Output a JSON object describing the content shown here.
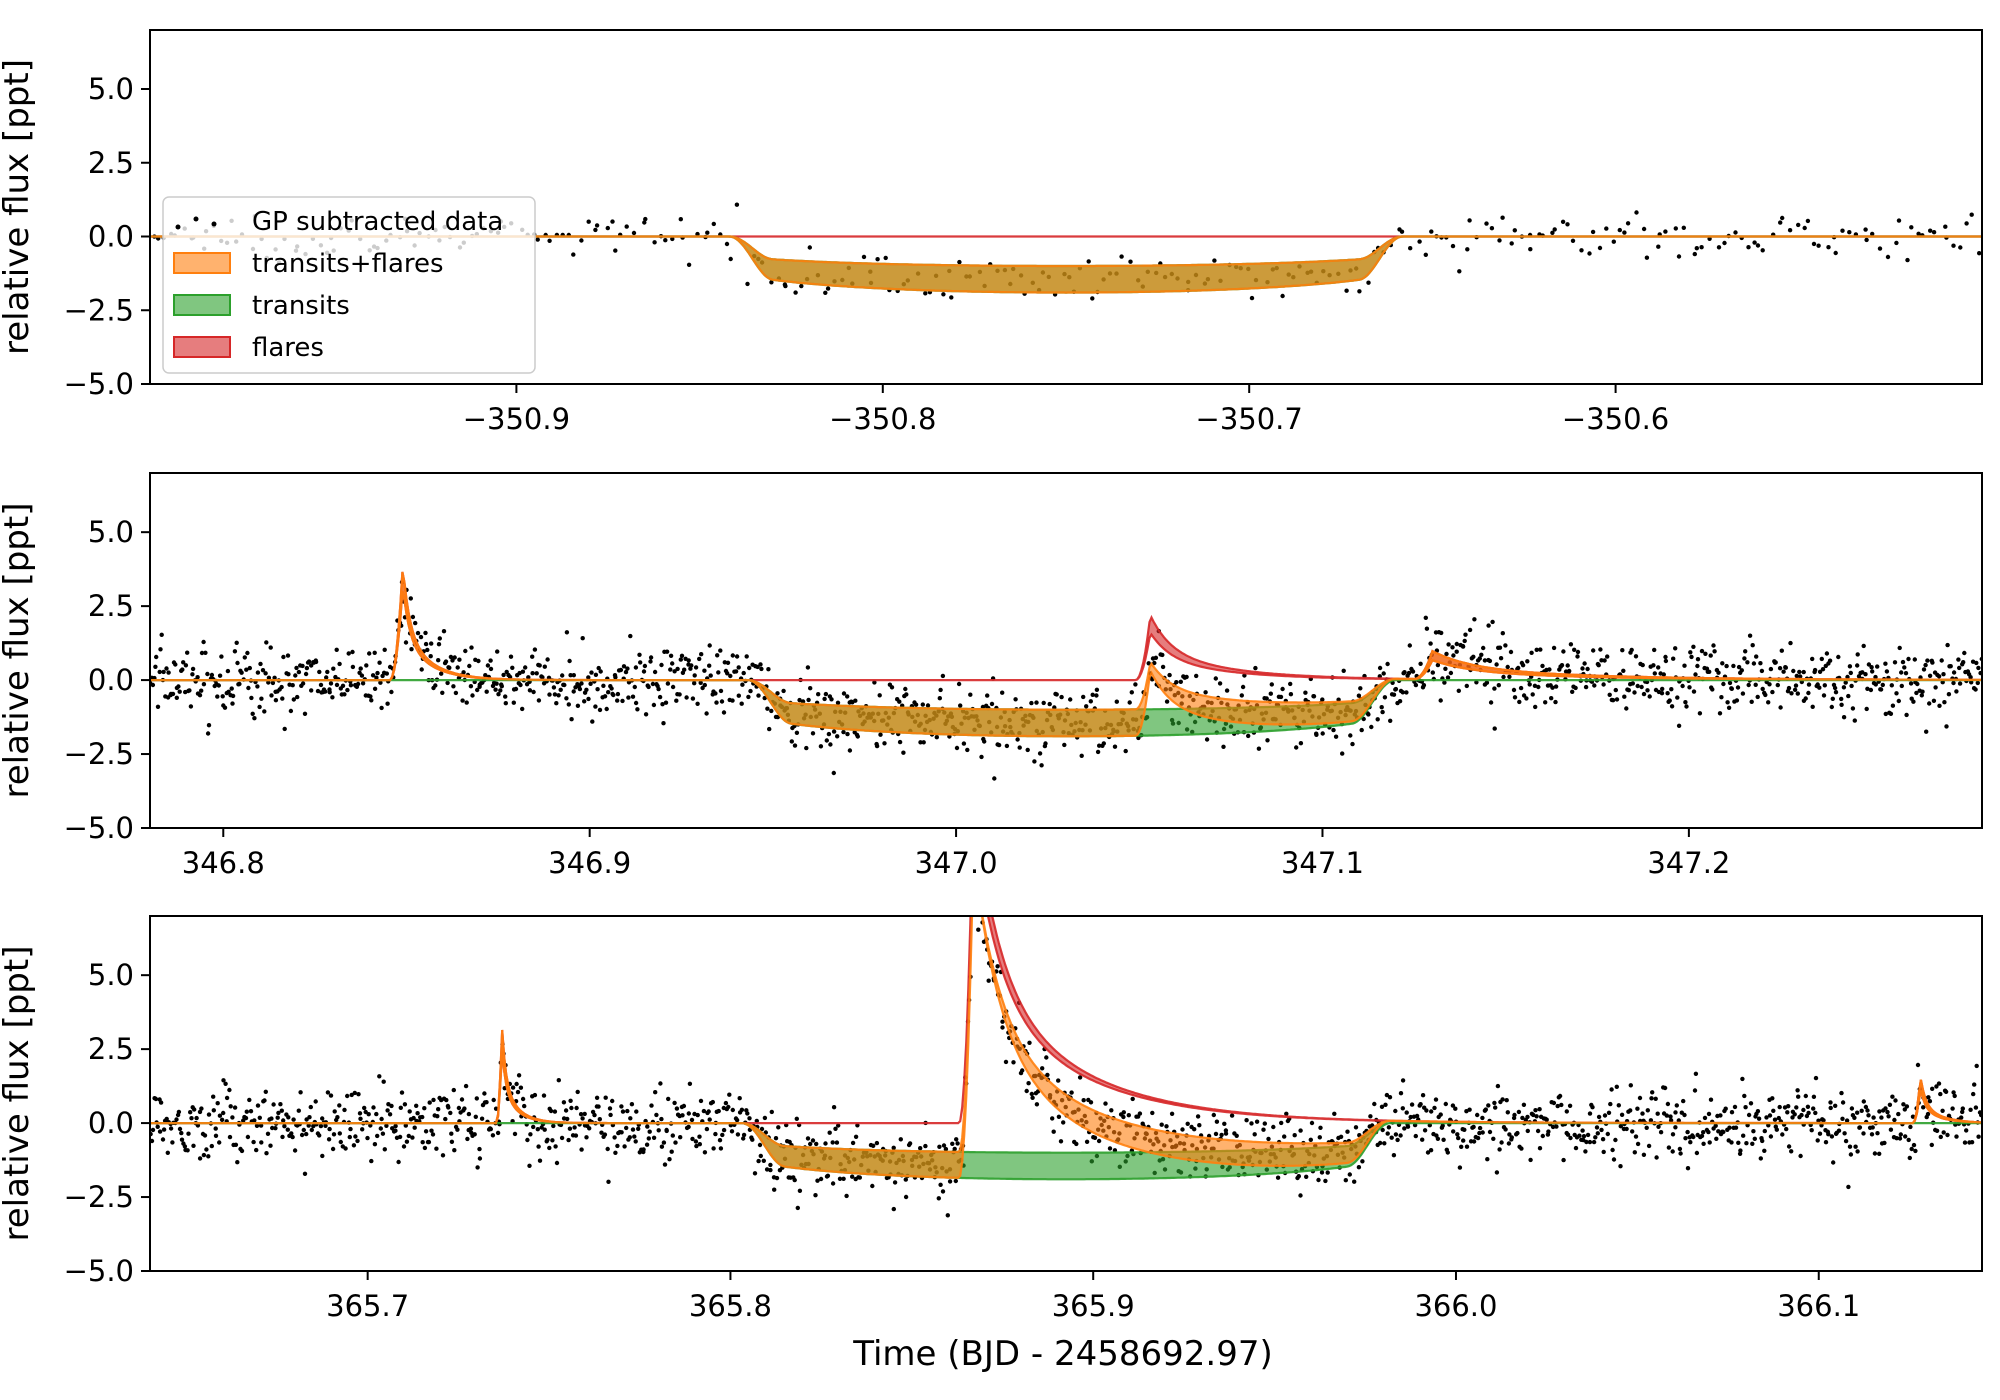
{
  "figure": {
    "xlabel": "Time (BJD - 2458692.97)",
    "ylabel": "relative flux [ppt]"
  },
  "colors": {
    "data": "#000000",
    "transits_flares": "#ff7f0e",
    "transits": "#2ca02c",
    "flares": "#d62728"
  },
  "legend": {
    "placement": "upper-left of top panel",
    "entries": [
      {
        "label": "GP subtracted data",
        "kind": "points",
        "color": "#000000"
      },
      {
        "label": "transits+flares",
        "kind": "band",
        "color": "#ff7f0e"
      },
      {
        "label": "transits",
        "kind": "band",
        "color": "#2ca02c"
      },
      {
        "label": "flares",
        "kind": "band",
        "color": "#d62728"
      }
    ]
  },
  "chart_data": [
    {
      "type": "scatter",
      "panel": "top",
      "xlim": [
        -351.0,
        -350.5
      ],
      "ylim": [
        -5.0,
        7.0
      ],
      "xticks": [
        -350.9,
        -350.8,
        -350.7,
        -350.6
      ],
      "xtick_labels": [
        "−350.9",
        "−350.8",
        "−350.7",
        "−350.6"
      ],
      "yticks": [
        -5.0,
        -2.5,
        0.0,
        2.5,
        5.0
      ],
      "ytick_labels": [
        "−5.0",
        "−2.5",
        "0.0",
        "2.5",
        "5.0"
      ],
      "noise_ppt": 0.35,
      "n_points": 300,
      "transits": [
        {
          "t1": -350.842,
          "t2": -350.658,
          "ingress": 0.012,
          "depth_lo": 1.0,
          "depth_hi": 1.9
        }
      ],
      "flares": []
    },
    {
      "type": "scatter",
      "panel": "middle",
      "xlim": [
        346.78,
        347.28
      ],
      "ylim": [
        -5.0,
        7.0
      ],
      "xticks": [
        346.8,
        346.9,
        347.0,
        347.1,
        347.2
      ],
      "xtick_labels": [
        "346.8",
        "346.9",
        "347.0",
        "347.1",
        "347.2"
      ],
      "yticks": [
        -5.0,
        -2.5,
        0.0,
        2.5,
        5.0
      ],
      "ytick_labels": [
        "−5.0",
        "−2.5",
        "0.0",
        "2.5",
        "5.0"
      ],
      "noise_ppt": 0.6,
      "n_points": 1500,
      "transits": [
        {
          "t1": 346.943,
          "t2": 347.12,
          "ingress": 0.012,
          "depth_lo": 1.0,
          "depth_hi": 1.9
        }
      ],
      "flares": [
        {
          "t0": 346.849,
          "amp_lo": 3.2,
          "amp_hi": 3.9,
          "rise": 0.0035,
          "decay": 0.007
        },
        {
          "t0": 347.053,
          "amp_lo": 1.6,
          "amp_hi": 2.2,
          "rise": 0.004,
          "decay": 0.022
        },
        {
          "t0": 347.13,
          "amp_lo": 0.65,
          "amp_hi": 0.95,
          "rise": 0.005,
          "decay": 0.04
        }
      ]
    },
    {
      "type": "scatter",
      "panel": "bottom",
      "xlim": [
        365.64,
        366.145
      ],
      "ylim": [
        -5.0,
        7.0
      ],
      "xticks": [
        365.7,
        365.8,
        365.9,
        366.0,
        366.1
      ],
      "xtick_labels": [
        "365.7",
        "365.8",
        "365.9",
        "366.0",
        "366.1"
      ],
      "yticks": [
        -5.0,
        -2.5,
        0.0,
        2.5,
        5.0
      ],
      "ytick_labels": [
        "−5.0",
        "−2.5",
        "0.0",
        "2.5",
        "5.0"
      ],
      "noise_ppt": 0.6,
      "n_points": 1500,
      "transits": [
        {
          "t1": 365.803,
          "t2": 365.982,
          "ingress": 0.012,
          "depth_lo": 1.0,
          "depth_hi": 1.9
        }
      ],
      "flares": [
        {
          "t0": 365.737,
          "amp_lo": 2.6,
          "amp_hi": 3.3,
          "rise": 0.0015,
          "decay": 0.004
        },
        {
          "t0": 365.867,
          "amp_lo": 10.0,
          "amp_hi": 11.0,
          "rise": 0.004,
          "decay": 0.028
        },
        {
          "t0": 366.128,
          "amp_lo": 1.2,
          "amp_hi": 1.6,
          "rise": 0.002,
          "decay": 0.005
        }
      ]
    }
  ]
}
